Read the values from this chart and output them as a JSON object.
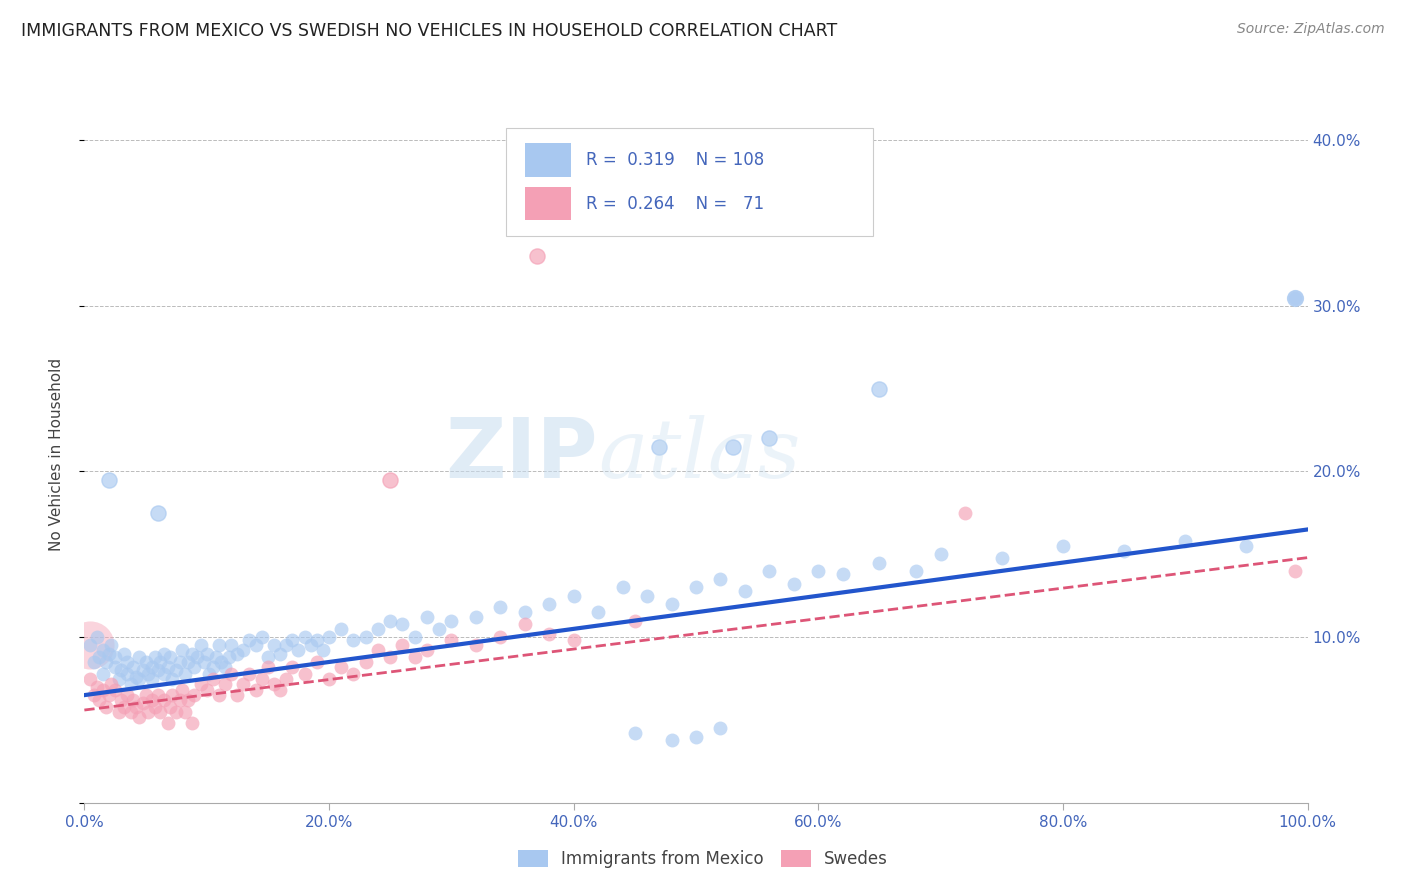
{
  "title": "IMMIGRANTS FROM MEXICO VS SWEDISH NO VEHICLES IN HOUSEHOLD CORRELATION CHART",
  "source": "Source: ZipAtlas.com",
  "ylabel_label": "No Vehicles in Household",
  "xlim": [
    0.0,
    1.0
  ],
  "ylim": [
    0.0,
    0.42
  ],
  "legend_labels": [
    "Immigrants from Mexico",
    "Swedes"
  ],
  "blue_color": "#a8c8f0",
  "pink_color": "#f4a0b5",
  "blue_line_color": "#2255cc",
  "pink_line_color": "#dd5577",
  "blue_R": 0.319,
  "blue_N": 108,
  "pink_R": 0.264,
  "pink_N": 71,
  "watermark_zip": "ZIP",
  "watermark_atlas": "atlas",
  "grid_color": "#bbbbbb",
  "background_color": "#ffffff",
  "tick_color": "#4466bb",
  "blue_line_x0": 0.0,
  "blue_line_x1": 1.0,
  "blue_line_y0": 0.065,
  "blue_line_y1": 0.165,
  "pink_line_x0": 0.0,
  "pink_line_x1": 1.0,
  "pink_line_y0": 0.056,
  "pink_line_y1": 0.148,
  "blue_scatter_x": [
    0.005,
    0.008,
    0.01,
    0.012,
    0.015,
    0.015,
    0.018,
    0.02,
    0.022,
    0.025,
    0.025,
    0.028,
    0.03,
    0.032,
    0.035,
    0.035,
    0.038,
    0.04,
    0.042,
    0.045,
    0.045,
    0.048,
    0.05,
    0.052,
    0.055,
    0.055,
    0.058,
    0.06,
    0.062,
    0.065,
    0.065,
    0.068,
    0.07,
    0.072,
    0.075,
    0.078,
    0.08,
    0.082,
    0.085,
    0.088,
    0.09,
    0.092,
    0.095,
    0.098,
    0.1,
    0.102,
    0.105,
    0.108,
    0.11,
    0.112,
    0.115,
    0.118,
    0.12,
    0.125,
    0.13,
    0.135,
    0.14,
    0.145,
    0.15,
    0.155,
    0.16,
    0.165,
    0.17,
    0.175,
    0.18,
    0.185,
    0.19,
    0.195,
    0.2,
    0.21,
    0.22,
    0.23,
    0.24,
    0.25,
    0.26,
    0.27,
    0.28,
    0.29,
    0.3,
    0.32,
    0.34,
    0.36,
    0.38,
    0.4,
    0.42,
    0.44,
    0.46,
    0.48,
    0.5,
    0.52,
    0.54,
    0.56,
    0.58,
    0.6,
    0.62,
    0.65,
    0.68,
    0.7,
    0.75,
    0.8,
    0.85,
    0.9,
    0.95,
    0.99,
    0.5,
    0.52,
    0.45,
    0.48
  ],
  "blue_scatter_y": [
    0.095,
    0.085,
    0.1,
    0.088,
    0.092,
    0.078,
    0.085,
    0.09,
    0.095,
    0.082,
    0.088,
    0.075,
    0.08,
    0.09,
    0.085,
    0.078,
    0.072,
    0.082,
    0.076,
    0.088,
    0.075,
    0.08,
    0.085,
    0.078,
    0.082,
    0.075,
    0.088,
    0.08,
    0.085,
    0.078,
    0.09,
    0.082,
    0.088,
    0.075,
    0.08,
    0.085,
    0.092,
    0.078,
    0.085,
    0.09,
    0.082,
    0.088,
    0.095,
    0.085,
    0.09,
    0.078,
    0.082,
    0.088,
    0.095,
    0.085,
    0.082,
    0.088,
    0.095,
    0.09,
    0.092,
    0.098,
    0.095,
    0.1,
    0.088,
    0.095,
    0.09,
    0.095,
    0.098,
    0.092,
    0.1,
    0.095,
    0.098,
    0.092,
    0.1,
    0.105,
    0.098,
    0.1,
    0.105,
    0.11,
    0.108,
    0.1,
    0.112,
    0.105,
    0.11,
    0.112,
    0.118,
    0.115,
    0.12,
    0.125,
    0.115,
    0.13,
    0.125,
    0.12,
    0.13,
    0.135,
    0.128,
    0.14,
    0.132,
    0.14,
    0.138,
    0.145,
    0.14,
    0.15,
    0.148,
    0.155,
    0.152,
    0.158,
    0.155,
    0.305,
    0.04,
    0.045,
    0.042,
    0.038
  ],
  "pink_scatter_x": [
    0.005,
    0.008,
    0.01,
    0.012,
    0.015,
    0.018,
    0.02,
    0.022,
    0.025,
    0.028,
    0.03,
    0.032,
    0.035,
    0.038,
    0.04,
    0.042,
    0.045,
    0.048,
    0.05,
    0.052,
    0.055,
    0.058,
    0.06,
    0.062,
    0.065,
    0.068,
    0.07,
    0.072,
    0.075,
    0.078,
    0.08,
    0.082,
    0.085,
    0.088,
    0.09,
    0.095,
    0.1,
    0.105,
    0.11,
    0.115,
    0.12,
    0.125,
    0.13,
    0.135,
    0.14,
    0.145,
    0.15,
    0.155,
    0.16,
    0.165,
    0.17,
    0.18,
    0.19,
    0.2,
    0.21,
    0.22,
    0.23,
    0.24,
    0.25,
    0.26,
    0.27,
    0.28,
    0.3,
    0.32,
    0.34,
    0.36,
    0.38,
    0.4,
    0.45,
    0.72,
    0.99
  ],
  "pink_scatter_y": [
    0.075,
    0.065,
    0.07,
    0.062,
    0.068,
    0.058,
    0.065,
    0.072,
    0.068,
    0.055,
    0.062,
    0.058,
    0.065,
    0.055,
    0.062,
    0.058,
    0.052,
    0.06,
    0.065,
    0.055,
    0.062,
    0.058,
    0.065,
    0.055,
    0.062,
    0.048,
    0.058,
    0.065,
    0.055,
    0.062,
    0.068,
    0.055,
    0.062,
    0.048,
    0.065,
    0.072,
    0.068,
    0.075,
    0.065,
    0.072,
    0.078,
    0.065,
    0.072,
    0.078,
    0.068,
    0.075,
    0.082,
    0.072,
    0.068,
    0.075,
    0.082,
    0.078,
    0.085,
    0.075,
    0.082,
    0.078,
    0.085,
    0.092,
    0.088,
    0.095,
    0.088,
    0.092,
    0.098,
    0.095,
    0.1,
    0.108,
    0.102,
    0.098,
    0.11,
    0.175,
    0.14
  ],
  "large_pink_x": [
    0.005
  ],
  "large_pink_y": [
    0.095
  ],
  "large_pink_size": 1200,
  "outlier_pink_x": [
    0.37
  ],
  "outlier_pink_y": [
    0.33
  ],
  "blue_outlier1_x": [
    0.02
  ],
  "blue_outlier1_y": [
    0.195
  ],
  "blue_outlier2_x": [
    0.06
  ],
  "blue_outlier2_y": [
    0.175
  ],
  "blue_outlier3_x": [
    0.53
  ],
  "blue_outlier3_y": [
    0.215
  ],
  "blue_outlier4_x": [
    0.56
  ],
  "blue_outlier4_y": [
    0.22
  ],
  "blue_outlier5_x": [
    0.47
  ],
  "blue_outlier5_y": [
    0.215
  ],
  "blue_outlier6_x": [
    0.65
  ],
  "blue_outlier6_y": [
    0.25
  ],
  "pink_outlier2_x": [
    0.25
  ],
  "pink_outlier2_y": [
    0.195
  ],
  "blue_far_outlier_x": [
    0.99
  ],
  "blue_far_outlier_y": [
    0.305
  ]
}
